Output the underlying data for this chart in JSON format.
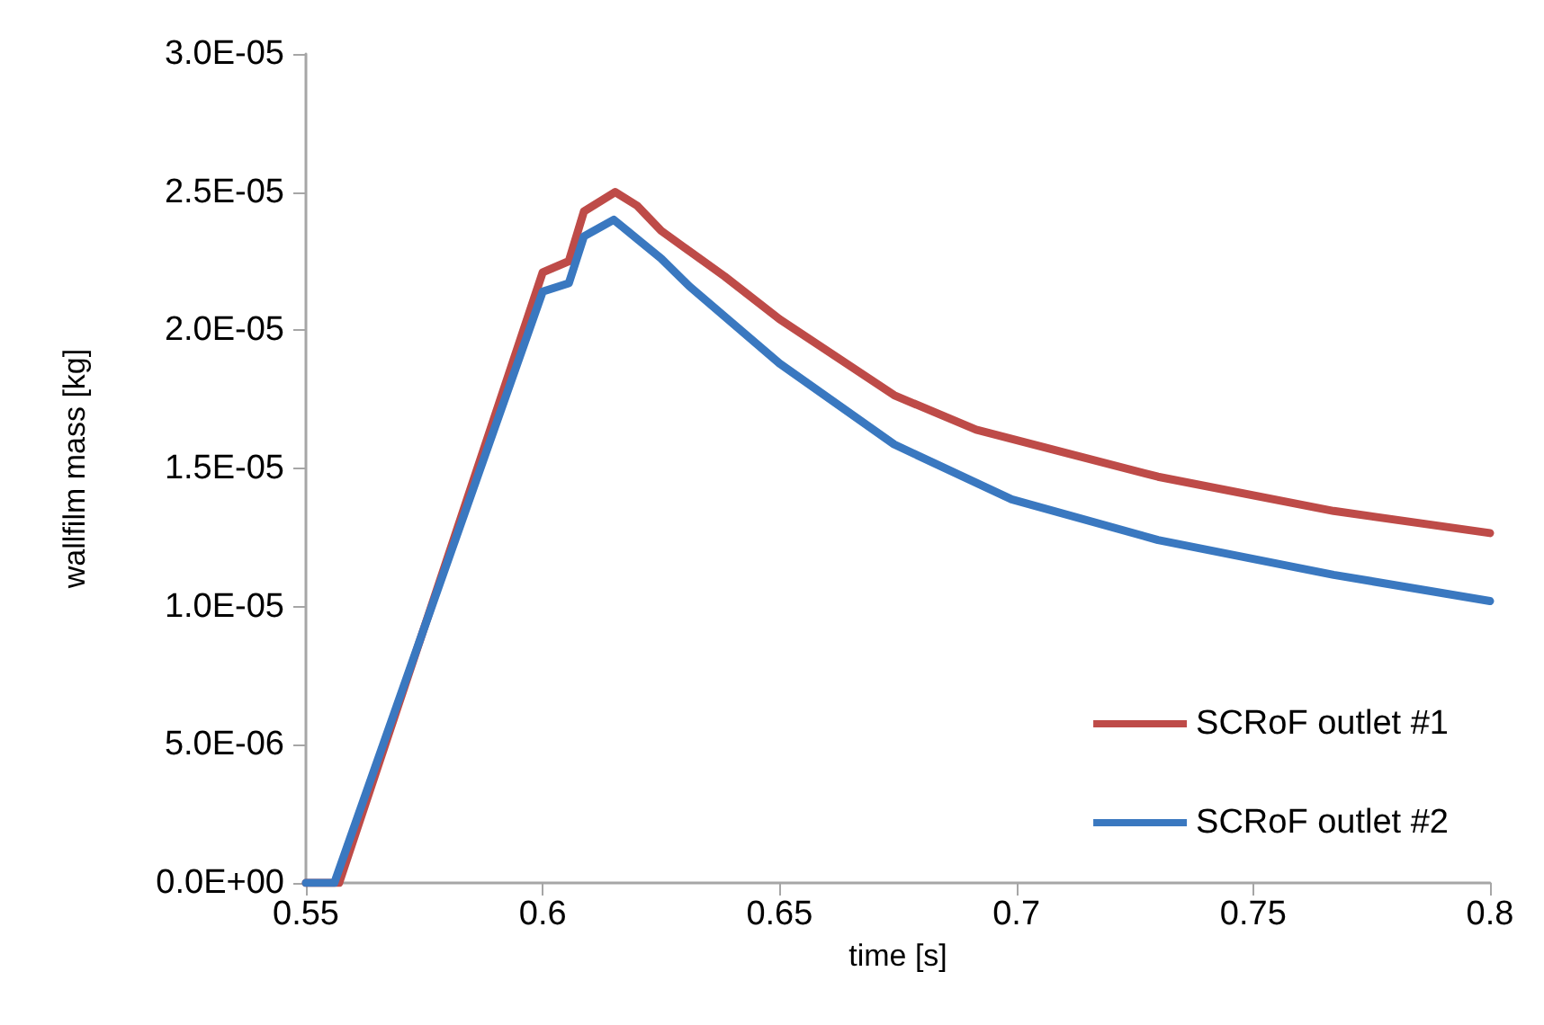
{
  "chart_data": {
    "type": "line",
    "xlabel": "time [s]",
    "ylabel": "wallfilm mass [kg]",
    "xlim": [
      0.55,
      0.8
    ],
    "xticks": [
      0.55,
      0.6,
      0.65,
      0.7,
      0.75,
      0.8
    ],
    "ylim": [
      0,
      3e-05
    ],
    "yticks": [
      {
        "value": 0,
        "label": "0.0E+00"
      },
      {
        "value": 5e-06,
        "label": "5.0E-06"
      },
      {
        "value": 1e-05,
        "label": "1.0E-05"
      },
      {
        "value": 1.5e-05,
        "label": "1.5E-05"
      },
      {
        "value": 2e-05,
        "label": "2.0E-05"
      },
      {
        "value": 2.5e-05,
        "label": "2.5E-05"
      },
      {
        "value": 3e-05,
        "label": "3.0E-05"
      }
    ],
    "grid": false,
    "legend": "bottom right",
    "marker": "none",
    "line_style": "solid",
    "series": [
      {
        "name": "SCRoF outlet #1",
        "color": "#be4b48",
        "x": [
          0.55,
          0.557,
          0.6,
          0.6055,
          0.6087,
          0.6153,
          0.62,
          0.625,
          0.6384,
          0.65,
          0.6742,
          0.6915,
          0.7299,
          0.767,
          0.8
        ],
        "values": [
          0,
          0,
          2.21e-05,
          2.25e-05,
          2.43e-05,
          2.5e-05,
          2.45e-05,
          2.36e-05,
          2.195e-05,
          2.04e-05,
          1.765e-05,
          1.64e-05,
          1.47e-05,
          1.346e-05,
          1.266e-05
        ]
      },
      {
        "name": "SCRoF outlet #2",
        "color": "#3a78c0",
        "x": [
          0.55,
          0.556,
          0.6,
          0.6055,
          0.6087,
          0.615,
          0.62,
          0.625,
          0.6309,
          0.65,
          0.6742,
          0.699,
          0.7299,
          0.767,
          0.8
        ],
        "values": [
          0,
          0,
          2.14e-05,
          2.17e-05,
          2.34e-05,
          2.4e-05,
          2.33e-05,
          2.26e-05,
          2.16e-05,
          1.88e-05,
          1.587e-05,
          1.388e-05,
          1.241e-05,
          1.115e-05,
          1.02e-05
        ]
      }
    ]
  }
}
